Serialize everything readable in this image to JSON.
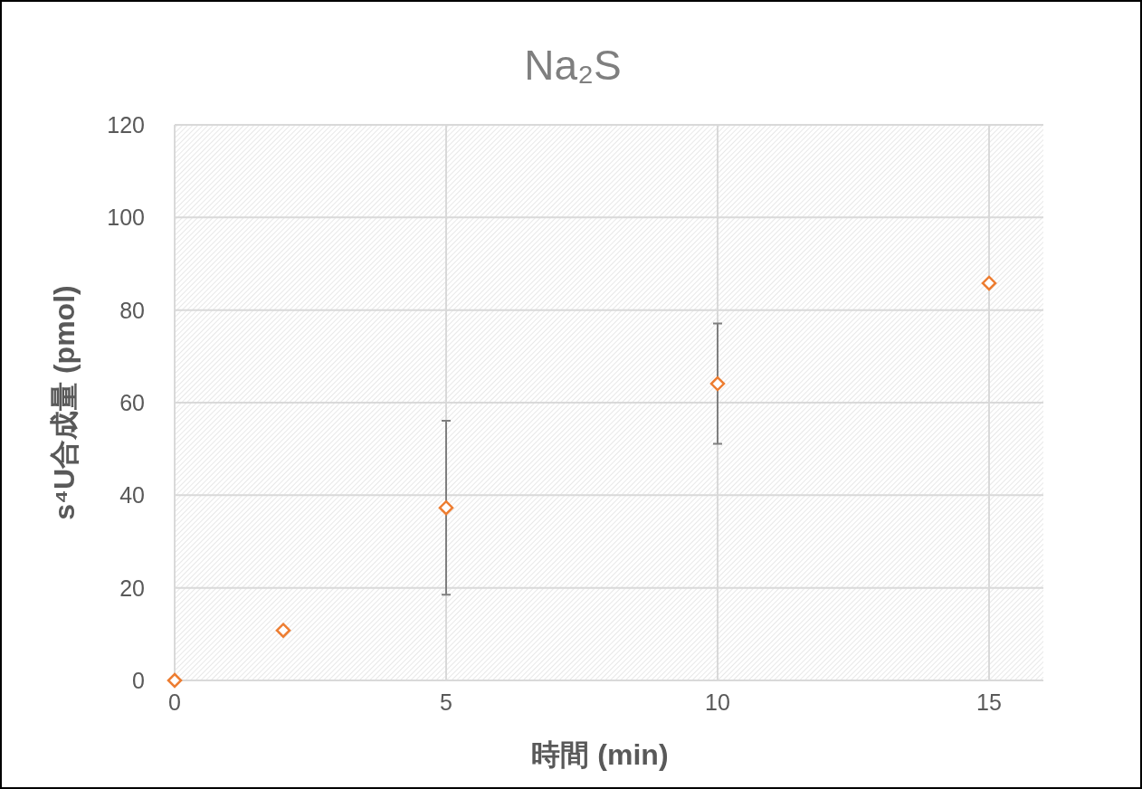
{
  "chart_data": {
    "type": "scatter",
    "title": "Na₂S",
    "xlabel": "時間 (min)",
    "ylabel": "s⁴U合成量 (pmol)",
    "xlim": [
      0,
      16
    ],
    "xticks": [
      0,
      5,
      10,
      15
    ],
    "ylim": [
      0,
      120
    ],
    "yticks": [
      0,
      20,
      40,
      60,
      80,
      100,
      120
    ],
    "grid": true,
    "marker": "diamond",
    "series": [
      {
        "color": "#ed7d31",
        "x": [
          0,
          2,
          5,
          10,
          15
        ],
        "values": [
          0,
          10.8,
          37.3,
          64.1,
          85.8
        ],
        "errors": [
          null,
          null,
          18.8,
          13.0,
          null
        ]
      }
    ]
  }
}
